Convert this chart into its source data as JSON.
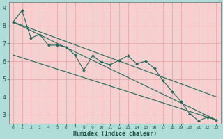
{
  "xlabel": "Humidex (Indice chaleur)",
  "outer_bg": "#b0ddd8",
  "plot_bg": "#f5d0d0",
  "grid_color": "#e8a0a0",
  "line_color": "#1a6b5a",
  "tick_color": "#1a5040",
  "xlim": [
    -0.5,
    23.5
  ],
  "ylim": [
    2.5,
    9.3
  ],
  "yticks": [
    3,
    4,
    5,
    6,
    7,
    8,
    9
  ],
  "xticks": [
    0,
    1,
    2,
    3,
    4,
    5,
    6,
    7,
    8,
    9,
    10,
    11,
    12,
    13,
    14,
    15,
    16,
    17,
    18,
    19,
    20,
    21,
    22,
    23
  ],
  "line1_x": [
    0,
    1,
    2,
    3,
    4,
    5,
    6,
    7,
    8,
    9,
    10,
    11,
    12,
    13,
    14,
    15,
    16,
    17,
    18,
    19,
    20,
    21,
    22,
    23
  ],
  "line1_y": [
    8.2,
    8.85,
    7.3,
    7.5,
    6.9,
    6.9,
    6.8,
    6.35,
    5.5,
    6.3,
    5.95,
    5.8,
    6.05,
    6.3,
    5.85,
    6.0,
    5.6,
    4.9,
    4.3,
    3.75,
    3.05,
    2.65,
    2.85,
    2.7
  ],
  "line2_x": [
    0,
    23
  ],
  "line2_y": [
    8.2,
    2.7
  ],
  "line3_x": [
    0,
    23
  ],
  "line3_y": [
    6.35,
    2.7
  ],
  "line4_x": [
    0,
    23
  ],
  "line4_y": [
    8.2,
    4.0
  ]
}
